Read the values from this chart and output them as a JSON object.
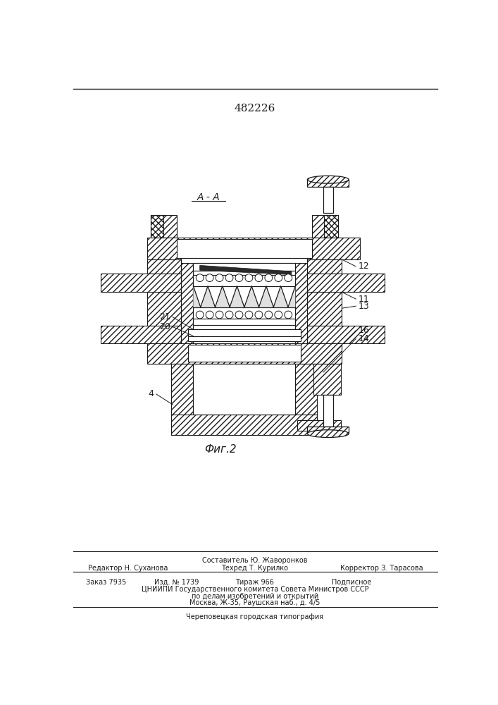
{
  "title_number": "482226",
  "fig_label": "Фиг.2",
  "section_label": "A - A",
  "background_color": "#ffffff",
  "line_color": "#1a1a1a",
  "footer": {
    "composer": "Составитель Ю. Жаворонков",
    "editor": "Редактор Н. Суханова",
    "tech": "Техред Т. Курилко",
    "corrector": "Корректор З. Тарасова",
    "order": "Заказ 7935",
    "issue": "Изд. № 1739",
    "copies": "Тираж 966",
    "subscription": "Подписное",
    "org_line1": "ЦНИИПИ Государственного комитета Совета Министров СССР",
    "org_line2": "по делам изобретений и открытий",
    "org_line3": "Москва, Ж-35, Раушская наб., д. 4/5",
    "printer": "Череповецкая городская типография"
  }
}
